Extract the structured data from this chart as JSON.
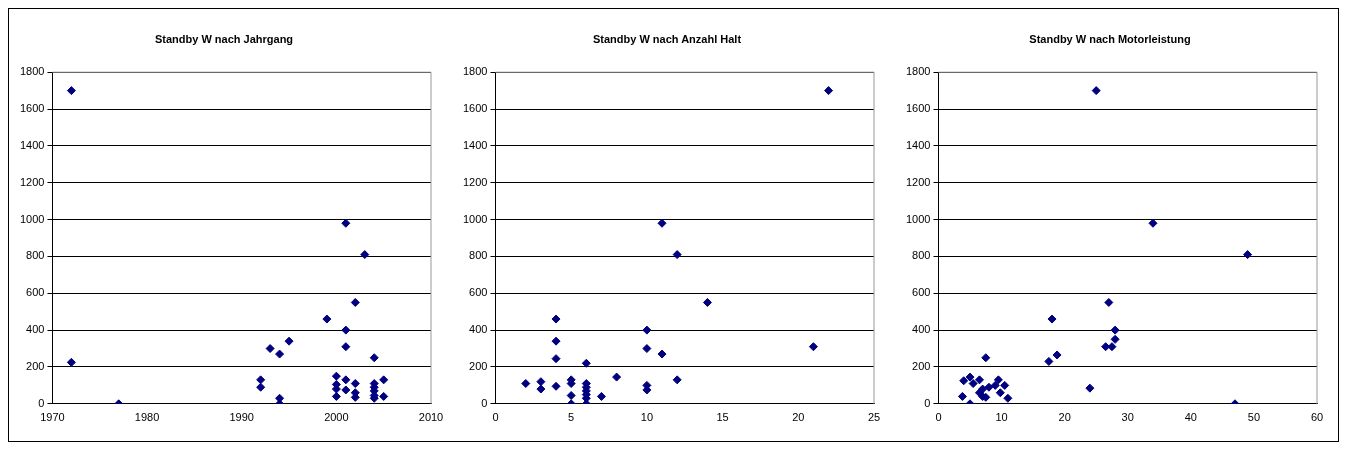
{
  "chart_data": [
    {
      "type": "scatter",
      "title": "Standby W nach Jahrgang",
      "xlim": [
        1970,
        2010
      ],
      "xticks": [
        1970,
        1980,
        1990,
        2000,
        2010
      ],
      "ylim": [
        0,
        1800
      ],
      "yticks": [
        0,
        200,
        400,
        600,
        800,
        1000,
        1200,
        1400,
        1600,
        1800
      ],
      "grid": "y",
      "legend": false,
      "marker": "diamond",
      "series": [
        {
          "color": "#000080",
          "x": [
            1972,
            1972,
            1977,
            1992,
            1992,
            1993,
            1994,
            1994,
            1994,
            1995,
            1999,
            2000,
            2000,
            2000,
            2000,
            2001,
            2001,
            2001,
            2001,
            2001,
            2002,
            2002,
            2002,
            2002,
            2003,
            2004,
            2004,
            2004,
            2004,
            2004,
            2004,
            2005,
            2005
          ],
          "values": [
            1700,
            225,
            0,
            130,
            90,
            300,
            270,
            30,
            0,
            340,
            460,
            150,
            105,
            80,
            40,
            980,
            400,
            310,
            130,
            75,
            550,
            110,
            60,
            35,
            810,
            250,
            110,
            90,
            70,
            45,
            30,
            130,
            40
          ]
        }
      ]
    },
    {
      "type": "scatter",
      "title": "Standby W nach Anzahl Halt",
      "xlim": [
        0,
        25
      ],
      "xticks": [
        0,
        5,
        10,
        15,
        20,
        25
      ],
      "ylim": [
        0,
        1800
      ],
      "yticks": [
        0,
        200,
        400,
        600,
        800,
        1000,
        1200,
        1400,
        1600,
        1800
      ],
      "grid": "y",
      "legend": false,
      "marker": "diamond",
      "series": [
        {
          "color": "#000080",
          "x": [
            2,
            3,
            3,
            4,
            4,
            4,
            4,
            5,
            5,
            5,
            5,
            6,
            6,
            6,
            6,
            6,
            6,
            6,
            7,
            8,
            10,
            10,
            10,
            10,
            11,
            11,
            12,
            12,
            14,
            21,
            22
          ],
          "values": [
            110,
            120,
            80,
            460,
            340,
            245,
            95,
            130,
            110,
            45,
            0,
            220,
            110,
            90,
            70,
            50,
            30,
            0,
            40,
            145,
            400,
            300,
            100,
            75,
            980,
            270,
            810,
            130,
            550,
            310,
            1700
          ]
        }
      ]
    },
    {
      "type": "scatter",
      "title": "Standby W nach Motorleistung",
      "xlim": [
        0,
        60
      ],
      "xticks": [
        0,
        10,
        20,
        30,
        40,
        50,
        60
      ],
      "ylim": [
        0,
        1800
      ],
      "yticks": [
        0,
        200,
        400,
        600,
        800,
        1000,
        1200,
        1400,
        1600,
        1800
      ],
      "grid": "y",
      "legend": false,
      "marker": "diamond",
      "series": [
        {
          "color": "#000080",
          "x": [
            3.8,
            4,
            5,
            5,
            5.5,
            6.5,
            6.5,
            7,
            7,
            7.5,
            7.5,
            8,
            9,
            9.5,
            9.8,
            10.5,
            11,
            17.5,
            18,
            18.8,
            24,
            25,
            26.5,
            27,
            27.5,
            28,
            28,
            34,
            47,
            49
          ],
          "values": [
            40,
            125,
            0,
            145,
            110,
            130,
            60,
            40,
            80,
            250,
            35,
            90,
            100,
            130,
            60,
            100,
            30,
            230,
            460,
            265,
            85,
            1700,
            310,
            550,
            310,
            350,
            400,
            980,
            0,
            810
          ]
        }
      ]
    }
  ]
}
